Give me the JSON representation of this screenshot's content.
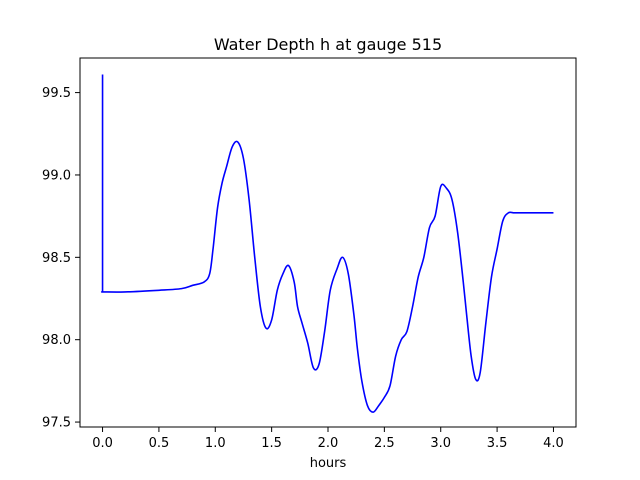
{
  "chart_data": {
    "type": "line",
    "title": "Water Depth h at gauge 515",
    "xlabel": "hours",
    "ylabel": "",
    "xlim": [
      -0.2,
      4.2
    ],
    "ylim": [
      97.47,
      99.71
    ],
    "xticks": [
      0.0,
      0.5,
      1.0,
      1.5,
      2.0,
      2.5,
      3.0,
      3.5,
      4.0
    ],
    "xtick_labels": [
      "0.0",
      "0.5",
      "1.0",
      "1.5",
      "2.0",
      "2.5",
      "3.0",
      "3.5",
      "4.0"
    ],
    "yticks": [
      97.5,
      98.0,
      98.5,
      99.0,
      99.5
    ],
    "ytick_labels": [
      "97.5",
      "98.0",
      "98.5",
      "99.0",
      "99.5"
    ],
    "grid": false,
    "series": [
      {
        "name": "",
        "color": "#0000ff",
        "x": [
          0.0,
          0.0,
          0.01,
          0.2,
          0.5,
          0.7,
          0.8,
          0.9,
          0.95,
          0.98,
          1.02,
          1.06,
          1.1,
          1.15,
          1.2,
          1.25,
          1.3,
          1.35,
          1.4,
          1.45,
          1.5,
          1.55,
          1.6,
          1.65,
          1.7,
          1.73,
          1.77,
          1.82,
          1.87,
          1.92,
          1.97,
          2.02,
          2.08,
          2.13,
          2.18,
          2.23,
          2.26,
          2.3,
          2.35,
          2.4,
          2.45,
          2.5,
          2.55,
          2.6,
          2.65,
          2.7,
          2.75,
          2.8,
          2.85,
          2.9,
          2.95,
          3.0,
          3.05,
          3.1,
          3.15,
          3.2,
          3.23,
          3.27,
          3.31,
          3.35,
          3.4,
          3.45,
          3.5,
          3.55,
          3.6,
          3.65,
          3.7,
          3.75,
          3.8,
          3.85,
          3.9,
          3.95,
          4.0
        ],
        "y": [
          99.61,
          98.29,
          98.29,
          98.29,
          98.3,
          98.31,
          98.33,
          98.35,
          98.4,
          98.55,
          98.8,
          98.95,
          99.05,
          99.17,
          99.2,
          99.1,
          98.85,
          98.5,
          98.2,
          98.07,
          98.12,
          98.3,
          98.4,
          98.45,
          98.35,
          98.2,
          98.1,
          97.98,
          97.83,
          97.85,
          98.05,
          98.3,
          98.43,
          98.5,
          98.4,
          98.15,
          97.95,
          97.75,
          97.6,
          97.56,
          97.6,
          97.65,
          97.72,
          97.9,
          98.0,
          98.05,
          98.2,
          98.38,
          98.5,
          98.68,
          98.75,
          98.93,
          98.92,
          98.85,
          98.65,
          98.35,
          98.15,
          97.9,
          97.76,
          97.8,
          98.1,
          98.38,
          98.55,
          98.72,
          98.77,
          98.77,
          98.77,
          98.77,
          98.77,
          98.77,
          98.77,
          98.77,
          98.77
        ]
      }
    ]
  }
}
